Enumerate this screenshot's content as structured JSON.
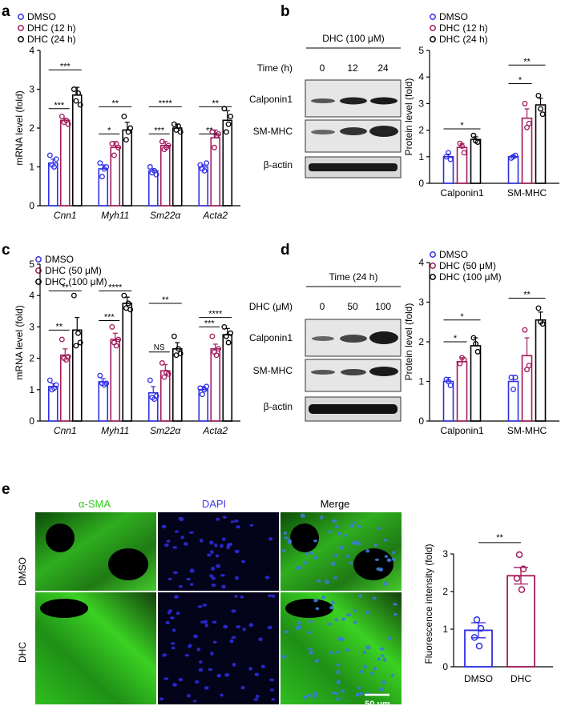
{
  "colors": {
    "dmso": "#2f2fe6",
    "dhc1": "#a3195b",
    "dhc2": "#000000",
    "green": "#2ecc1a",
    "blue": "#3b3bf0"
  },
  "panel_letters": [
    "a",
    "b",
    "c",
    "d",
    "e"
  ],
  "a": {
    "legend": [
      "DMSO",
      "DHC (12 h)",
      "DHC (24 h)"
    ],
    "ylabel": "mRNA level (fold)",
    "categories": [
      "Cnn1",
      "Myh11",
      "Sm22α",
      "Acta2"
    ],
    "means": [
      [
        1.1,
        2.2,
        2.85
      ],
      [
        0.95,
        1.5,
        1.95
      ],
      [
        0.9,
        1.55,
        2.0
      ],
      [
        1.0,
        1.75,
        2.2
      ]
    ],
    "errs": [
      [
        0.1,
        0.05,
        0.2
      ],
      [
        0.1,
        0.15,
        0.2
      ],
      [
        0.05,
        0.1,
        0.1
      ],
      [
        0.05,
        0.2,
        0.25
      ]
    ],
    "points": [
      [
        [
          1.3,
          1.05,
          1.0,
          1.2
        ],
        [
          2.3,
          2.15,
          2.2,
          2.1
        ],
        [
          3.0,
          2.7,
          2.9,
          2.6
        ]
      ],
      [
        [
          1.1,
          0.75,
          0.95,
          1.0
        ],
        [
          1.6,
          1.3,
          1.6,
          1.5
        ],
        [
          2.3,
          1.7,
          1.9,
          2.0
        ]
      ],
      [
        [
          1.0,
          0.85,
          0.9,
          0.8
        ],
        [
          1.65,
          1.45,
          1.5,
          1.55
        ],
        [
          2.1,
          1.95,
          2.05,
          1.9
        ]
      ],
      [
        [
          1.05,
          0.95,
          0.9,
          1.1
        ],
        [
          1.9,
          1.5,
          1.8,
          1.85
        ],
        [
          2.5,
          1.9,
          2.1,
          2.3
        ]
      ]
    ],
    "sig": [
      [
        {
          "a": 0,
          "b": 1,
          "t": "***",
          "y": 2.5
        },
        {
          "a": 0,
          "b": 2,
          "t": "***",
          "y": 3.5
        }
      ],
      [
        {
          "a": 0,
          "b": 1,
          "t": "*",
          "y": 1.85
        },
        {
          "a": 0,
          "b": 2,
          "t": "**",
          "y": 2.55
        }
      ],
      [
        {
          "a": 0,
          "b": 1,
          "t": "***",
          "y": 1.85
        },
        {
          "a": 0,
          "b": 2,
          "t": "****",
          "y": 2.55
        }
      ],
      [
        {
          "a": 0,
          "b": 1,
          "t": "**",
          "y": 1.85
        },
        {
          "a": 0,
          "b": 2,
          "t": "**",
          "y": 2.55
        }
      ]
    ],
    "ylim": [
      0,
      4
    ],
    "yticks": [
      0,
      1,
      2,
      3,
      4
    ]
  },
  "b_blot": {
    "title": "DHC (100 μM)",
    "time_label": "Time (h)",
    "lanes": [
      "0",
      "12",
      "24"
    ],
    "rows": [
      "Calponin1",
      "SM-MHC",
      "β-actin"
    ]
  },
  "b": {
    "legend": [
      "DMSO",
      "DHC (12 h)",
      "DHC (24 h)"
    ],
    "ylabel": "Protein level (fold)",
    "categories": [
      "Calponin1",
      "SM-MHC"
    ],
    "means": [
      [
        1.0,
        1.35,
        1.65
      ],
      [
        1.0,
        2.45,
        2.95
      ]
    ],
    "errs": [
      [
        0.1,
        0.15,
        0.1
      ],
      [
        0.05,
        0.35,
        0.25
      ]
    ],
    "points": [
      [
        [
          1.0,
          1.15,
          0.9
        ],
        [
          1.5,
          1.4,
          1.15
        ],
        [
          1.8,
          1.6,
          1.55
        ]
      ],
      [
        [
          0.95,
          1.0,
          1.05
        ],
        [
          3.0,
          2.1,
          2.25
        ],
        [
          3.3,
          2.8,
          2.6
        ]
      ]
    ],
    "sig": [
      [
        {
          "a": 0,
          "b": 2,
          "t": "*",
          "y": 2.05
        }
      ],
      [
        {
          "a": 0,
          "b": 1,
          "t": "*",
          "y": 3.75
        },
        {
          "a": 0,
          "b": 2,
          "t": "**",
          "y": 4.45
        }
      ]
    ],
    "ylim": [
      0,
      5
    ],
    "yticks": [
      0,
      1,
      2,
      3,
      4,
      5
    ]
  },
  "c": {
    "legend": [
      "DMSO",
      "DHC (50 μM)",
      "DHC (100 μM)"
    ],
    "ylabel": "mRNA level (fold)",
    "categories": [
      "Cnn1",
      "Myh11",
      "Sm22α",
      "Acta2"
    ],
    "means": [
      [
        1.1,
        2.1,
        2.9
      ],
      [
        1.25,
        2.6,
        3.75
      ],
      [
        0.9,
        1.6,
        2.3
      ],
      [
        1.0,
        2.3,
        2.75
      ]
    ],
    "errs": [
      [
        0.1,
        0.2,
        0.4
      ],
      [
        0.1,
        0.2,
        0.2
      ],
      [
        0.2,
        0.2,
        0.2
      ],
      [
        0.1,
        0.15,
        0.2
      ]
    ],
    "points": [
      [
        [
          1.3,
          1.0,
          1.05,
          1.15
        ],
        [
          2.6,
          2.0,
          1.95,
          2.05
        ],
        [
          4.0,
          2.4,
          2.8,
          2.5
        ]
      ],
      [
        [
          1.45,
          1.2,
          1.15,
          1.2
        ],
        [
          3.0,
          2.5,
          2.4,
          2.6
        ],
        [
          4.0,
          3.6,
          3.75,
          3.55
        ]
      ],
      [
        [
          1.3,
          0.75,
          0.7,
          0.8
        ],
        [
          1.85,
          1.4,
          1.55,
          1.5
        ],
        [
          2.7,
          2.1,
          2.3,
          2.15
        ]
      ],
      [
        [
          1.05,
          0.85,
          1.0,
          1.1
        ],
        [
          2.7,
          2.2,
          2.1,
          2.3
        ],
        [
          3.0,
          2.7,
          2.5,
          2.8
        ]
      ]
    ],
    "sig": [
      [
        {
          "a": 0,
          "b": 1,
          "t": "**",
          "y": 2.9
        },
        {
          "a": 0,
          "b": 2,
          "t": "**",
          "y": 4.15
        }
      ],
      [
        {
          "a": 0,
          "b": 1,
          "t": "***",
          "y": 3.2
        },
        {
          "a": 0,
          "b": 2,
          "t": "****",
          "y": 4.15
        }
      ],
      [
        {
          "a": 0,
          "b": 1,
          "t": "NS",
          "y": 2.2
        },
        {
          "a": 0,
          "b": 2,
          "t": "**",
          "y": 3.75
        }
      ],
      [
        {
          "a": 0,
          "b": 1,
          "t": "***",
          "y": 3.0
        },
        {
          "a": 0,
          "b": 2,
          "t": "****",
          "y": 3.3
        }
      ]
    ],
    "ylim": [
      0,
      5
    ],
    "yticks": [
      0,
      1,
      2,
      3,
      4,
      5
    ]
  },
  "d_blot": {
    "title": "Time (24 h)",
    "time_label": "DHC (μM)",
    "lanes": [
      "0",
      "50",
      "100"
    ],
    "rows": [
      "Calponin1",
      "SM-MHC",
      "β-actin"
    ]
  },
  "d": {
    "legend": [
      "DMSO",
      "DHC (50 μM)",
      "DHC (100 μM)"
    ],
    "ylabel": "Protein level (fold)",
    "categories": [
      "Calponin1",
      "SM-MHC"
    ],
    "means": [
      [
        1.0,
        1.5,
        1.9
      ],
      [
        1.0,
        1.65,
        2.55
      ]
    ],
    "errs": [
      [
        0.1,
        0.1,
        0.2
      ],
      [
        0.15,
        0.45,
        0.2
      ]
    ],
    "points": [
      [
        [
          1.05,
          1.0,
          0.9
        ],
        [
          1.45,
          1.6,
          1.55
        ],
        [
          2.1,
          1.95,
          1.75
        ]
      ],
      [
        [
          1.1,
          0.8,
          1.1
        ],
        [
          2.3,
          1.3,
          1.4
        ],
        [
          2.85,
          2.5,
          2.45
        ]
      ]
    ],
    "sig": [
      [
        {
          "a": 0,
          "b": 1,
          "t": "*",
          "y": 2.0
        },
        {
          "a": 0,
          "b": 2,
          "t": "*",
          "y": 2.55
        }
      ],
      [
        {
          "a": 0,
          "b": 2,
          "t": "**",
          "y": 3.1
        }
      ]
    ],
    "ylim": [
      0,
      4
    ],
    "yticks": [
      0,
      1,
      2,
      3,
      4
    ]
  },
  "e_micro": {
    "columns": [
      "α-SMA",
      "DAPI",
      "Merge"
    ],
    "rows": [
      "DMSO",
      "DHC"
    ],
    "scalebar": "50 μm"
  },
  "e": {
    "ylabel": "Fluorescence intensity (fold)",
    "categories": [
      "DMSO",
      "DHC"
    ],
    "means": [
      0.97,
      2.42
    ],
    "errs": [
      0.2,
      0.22
    ],
    "points": [
      [
        1.25,
        1.02,
        0.78,
        0.55
      ],
      [
        2.98,
        2.6,
        2.35,
        2.05
      ]
    ],
    "sig": {
      "a": 0,
      "b": 1,
      "t": "**",
      "y": 3.3
    },
    "ylim": [
      0,
      3
    ],
    "yticks": [
      0,
      1,
      2,
      3
    ]
  }
}
